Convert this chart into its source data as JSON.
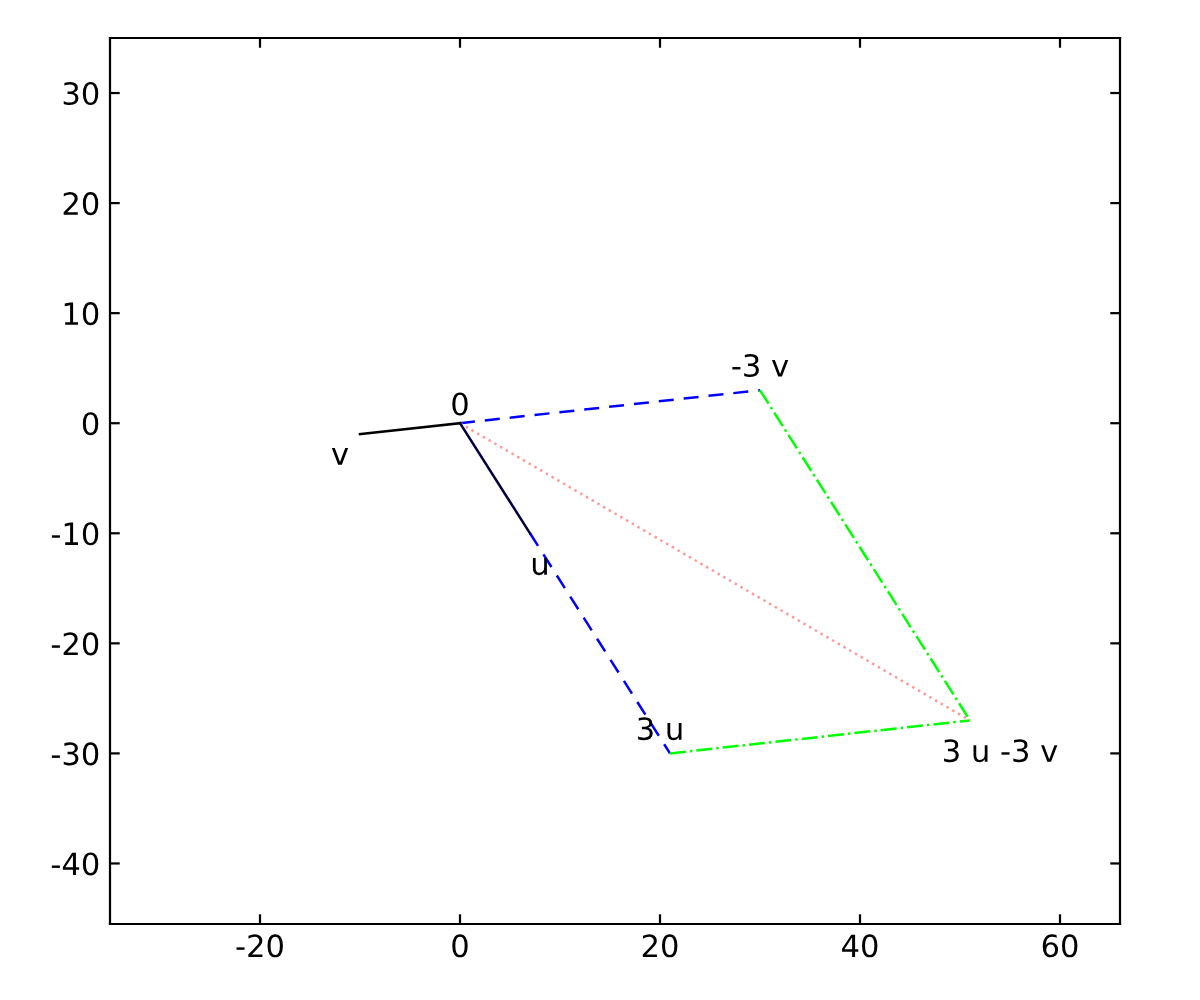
{
  "chart_data": {
    "type": "line",
    "xlim": [
      -35,
      66
    ],
    "ylim": [
      -45.5,
      35
    ],
    "xticks": [
      -20,
      0,
      20,
      40,
      60
    ],
    "yticks": [
      -40,
      -30,
      -20,
      -10,
      0,
      10,
      20,
      30
    ],
    "grid": false,
    "legend": false,
    "series": [
      {
        "color": "#0000ff",
        "line_style": "dashed",
        "x": [
          0,
          30,
          null,
          7,
          21
        ],
        "values": [
          0,
          3,
          null,
          -10,
          -30
        ]
      },
      {
        "color": "#00ff00",
        "line_style": "dashdot",
        "x": [
          30,
          51,
          null,
          21,
          51
        ],
        "values": [
          3,
          -27,
          null,
          -30,
          -27
        ]
      },
      {
        "color": "#ff9999",
        "line_style": "dotted",
        "x": [
          0,
          51
        ],
        "values": [
          0,
          -27
        ]
      },
      {
        "color": "#000040",
        "line_style": "solid",
        "x": [
          0,
          7
        ],
        "values": [
          0,
          -10
        ]
      },
      {
        "color": "#000000",
        "line_style": "solid",
        "x": [
          0,
          -10
        ],
        "values": [
          0,
          -1
        ]
      }
    ],
    "annotations": [
      {
        "text": "0",
        "x": 0,
        "y": 0
      },
      {
        "text": "v",
        "x": -10,
        "y": -1
      },
      {
        "text": "u",
        "x": 7,
        "y": -10
      },
      {
        "text": "-3 v",
        "x": 30,
        "y": 3
      },
      {
        "text": "3 u",
        "x": 21,
        "y": -30
      },
      {
        "text": "3 u -3 v",
        "x": 51,
        "y": -27
      }
    ]
  }
}
